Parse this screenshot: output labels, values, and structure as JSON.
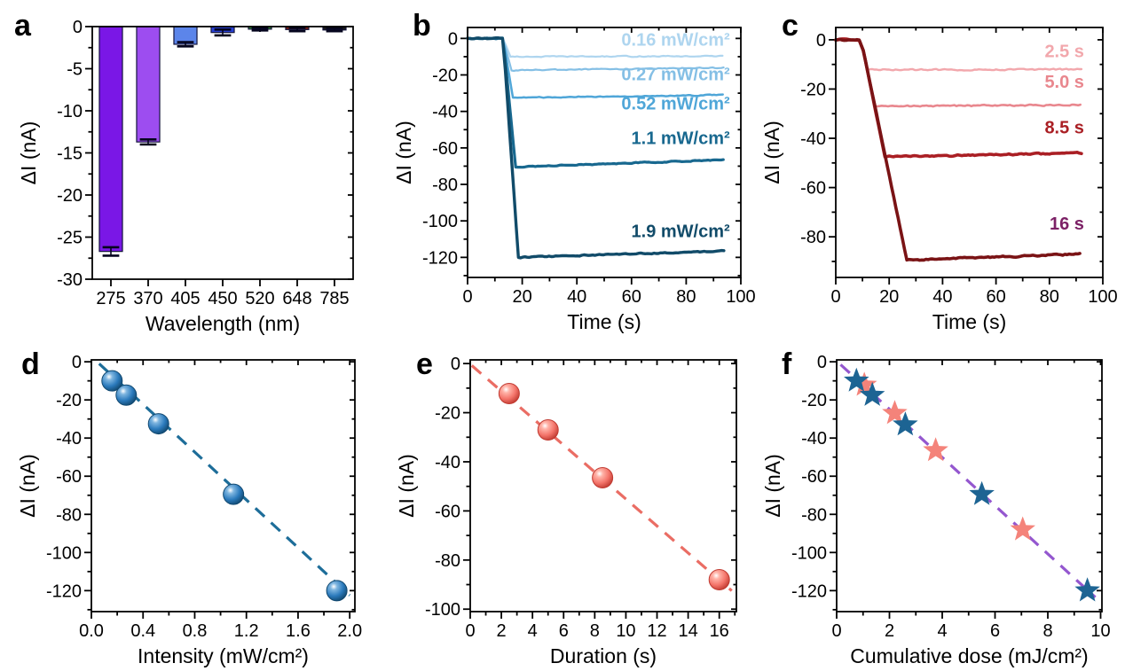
{
  "panels": [
    {
      "label": "a",
      "type": "bar",
      "xlabel": "Wavelength (nm)",
      "ylabel": "ΔI (nA)",
      "categories": [
        "275",
        "370",
        "405",
        "450",
        "520",
        "648",
        "785"
      ],
      "values": [
        -26.7,
        -13.7,
        -2.1,
        -0.7,
        -0.3,
        -0.35,
        -0.4
      ],
      "errors": [
        0.5,
        0.3,
        0.25,
        0.35,
        0.15,
        0.2,
        0.15
      ],
      "bar_colors": [
        "#7a17e6",
        "#9d4df0",
        "#5c85ea",
        "#2840d4",
        "#2f8b2f",
        "#7a1d10",
        "#1a1a1a"
      ],
      "bar_edge": "#14143c",
      "error_color": "#05051e",
      "ylim": [
        -30,
        0.001
      ],
      "ytick_values": [
        0,
        -5,
        -10,
        -15,
        -20,
        -25,
        -30
      ],
      "ytick_labels": [
        "0",
        "-5",
        "-10",
        "-15",
        "-20",
        "-25",
        "-30"
      ],
      "y_minor_step": 2.5
    },
    {
      "label": "b",
      "type": "kinetic",
      "xlabel": "Time (s)",
      "ylabel": "ΔI (nA)",
      "xlim": [
        0,
        100
      ],
      "ylim": [
        -131,
        6
      ],
      "xtick_values": [
        0,
        20,
        40,
        60,
        80,
        100
      ],
      "xtick_labels": [
        "0",
        "20",
        "40",
        "60",
        "80",
        "100"
      ],
      "ytick_values": [
        0,
        -20,
        -40,
        -60,
        -80,
        -100,
        -120
      ],
      "ytick_labels": [
        "0",
        "-20",
        "-40",
        "-60",
        "-80",
        "-100",
        "-120"
      ],
      "x_minor_step": 10,
      "y_minor_step": 10,
      "t_on": 13,
      "t_end": 94,
      "series": [
        {
          "label": "0.16 mW/cm²",
          "color": "#aed5ef",
          "plateau": -10,
          "t_flat": 15.7,
          "end_value": -9.7,
          "width": 2.2,
          "label_x": 96,
          "label_y": -4
        },
        {
          "label": "0.27 mW/cm²",
          "color": "#84bfe5",
          "plateau": -17.5,
          "t_flat": 16.1,
          "end_value": -16,
          "width": 2.2,
          "label_x": 96,
          "label_y": -23
        },
        {
          "label": "0.52 mW/cm²",
          "color": "#4fa6d8",
          "plateau": -32.5,
          "t_flat": 16.6,
          "end_value": -31,
          "width": 2.5,
          "label_x": 96,
          "label_y": -39
        },
        {
          "label": "1.1 mW/cm²",
          "color": "#18688f",
          "plateau": -70.5,
          "t_flat": 17.6,
          "end_value": -66.5,
          "width": 3.2,
          "label_x": 96,
          "label_y": -58
        },
        {
          "label": "1.9 mW/cm²",
          "color": "#114b69",
          "plateau": -120,
          "t_flat": 18.6,
          "end_value": -116.5,
          "width": 3.4,
          "label_x": 96,
          "label_y": -109
        }
      ]
    },
    {
      "label": "c",
      "type": "kinetic",
      "xlabel": "Time (s)",
      "ylabel": "ΔI (nA)",
      "xlim": [
        0,
        100
      ],
      "ylim": [
        -96.5,
        5
      ],
      "xtick_values": [
        0,
        20,
        40,
        60,
        80,
        100
      ],
      "xtick_labels": [
        "0",
        "20",
        "40",
        "60",
        "80",
        "100"
      ],
      "ytick_values": [
        0,
        -20,
        -40,
        -60,
        -80
      ],
      "ytick_labels": [
        "0",
        "-20",
        "-40",
        "-60",
        "-80"
      ],
      "x_minor_step": 10,
      "y_minor_step": 10,
      "t_on": 9.5,
      "t_end": 92,
      "series": [
        {
          "label": "2.5 s",
          "color": "#f2a7ac",
          "plateau": -12.2,
          "t_flat": 12,
          "end_value": -12,
          "width": 2.4,
          "label_x": 93,
          "label_y": -7
        },
        {
          "label": "5.0 s",
          "color": "#e9878e",
          "plateau": -27,
          "t_flat": 14.8,
          "end_value": -26.5,
          "width": 2.6,
          "label_x": 93,
          "label_y": -19.5
        },
        {
          "label": "8.5 s",
          "color": "#aa1f24",
          "plateau": -47.5,
          "t_flat": 18.4,
          "end_value": -46,
          "width": 3.6,
          "label_x": 93,
          "label_y": -38
        },
        {
          "label": "16 s",
          "color": "#7a1315",
          "label_color": "#7c2166",
          "plateau": -89.5,
          "t_flat": 26.6,
          "end_value": -87,
          "width": 3.6,
          "label_x": 93,
          "label_y": -77
        }
      ]
    },
    {
      "label": "d",
      "type": "scatter",
      "marker": "sphere",
      "xlabel": "Intensity (mW/cm²)",
      "ylabel": "ΔI (nA)",
      "xlim": [
        0,
        2.04
      ],
      "ylim": [
        -131,
        1
      ],
      "xtick_values": [
        0.0,
        0.4,
        0.8,
        1.2,
        1.6,
        2.0
      ],
      "xtick_labels": [
        "0.0",
        "0.4",
        "0.8",
        "1.2",
        "1.6",
        "2.0"
      ],
      "ytick_values": [
        0,
        -20,
        -40,
        -60,
        -80,
        -100,
        -120
      ],
      "ytick_labels": [
        "0",
        "-20",
        "-40",
        "-60",
        "-80",
        "-100",
        "-120"
      ],
      "x_minor_step": 0.2,
      "y_minor_step": 10,
      "trend_line": {
        "color": "#1d6d99",
        "x0": 0.06,
        "y0": -1,
        "x1": 2.0,
        "y1": -122.5
      },
      "marker_light": "#7fb6e0",
      "marker_color": "#2b7abc",
      "marker_dark": "#11486f",
      "points": [
        [
          0.16,
          -10
        ],
        [
          0.27,
          -17.5
        ],
        [
          0.52,
          -32.5
        ],
        [
          1.1,
          -69.5
        ],
        [
          1.9,
          -120
        ]
      ]
    },
    {
      "label": "e",
      "type": "scatter",
      "marker": "sphere",
      "xlabel": "Duration (s)",
      "ylabel": "ΔI (nA)",
      "xlim": [
        0,
        17.1
      ],
      "ylim": [
        -101,
        1.5
      ],
      "xtick_values": [
        0,
        2,
        4,
        6,
        8,
        10,
        12,
        14,
        16
      ],
      "xtick_labels": [
        "0",
        "2",
        "4",
        "6",
        "8",
        "10",
        "12",
        "14",
        "16"
      ],
      "ytick_values": [
        0,
        -20,
        -40,
        -60,
        -80,
        -100
      ],
      "ytick_labels": [
        "0",
        "-20",
        "-40",
        "-60",
        "-80",
        "-100"
      ],
      "x_minor_step": 1,
      "y_minor_step": 10,
      "trend_line": {
        "color": "#ea6d64",
        "x0": 0.1,
        "y0": -0.8,
        "x1": 16.8,
        "y1": -92.5
      },
      "marker_light": "#ffb3a8",
      "marker_color": "#f4756b",
      "marker_dark": "#c03a31",
      "points": [
        [
          2.5,
          -12.2
        ],
        [
          5.0,
          -27
        ],
        [
          8.5,
          -46.5
        ],
        [
          16,
          -88
        ]
      ]
    },
    {
      "label": "f",
      "type": "scatter",
      "marker": "star",
      "xlabel": "Cumulative dose (mJ/cm²)",
      "ylabel": "ΔI (nA)",
      "xlim": [
        0,
        10.05
      ],
      "ylim": [
        -131,
        1
      ],
      "xtick_values": [
        0,
        2,
        4,
        6,
        8,
        10
      ],
      "xtick_labels": [
        "0",
        "2",
        "4",
        "6",
        "8",
        "10"
      ],
      "ytick_values": [
        0,
        -20,
        -40,
        -60,
        -80,
        -100,
        -120
      ],
      "ytick_labels": [
        "0",
        "-20",
        "-40",
        "-60",
        "-80",
        "-100",
        "-120"
      ],
      "x_minor_step": 1,
      "y_minor_step": 10,
      "trend_line": {
        "color": "#9457cf",
        "x0": 0.15,
        "y0": -1.5,
        "x1": 9.8,
        "y1": -123.5
      },
      "star_series": [
        {
          "name": "salmon-stars",
          "color": "#f4837a",
          "points": [
            [
              1.05,
              -12.2
            ],
            [
              2.2,
              -27
            ],
            [
              3.75,
              -46.5
            ],
            [
              7.05,
              -88
            ]
          ]
        },
        {
          "name": "blue-stars",
          "color": "#1d6493",
          "points": [
            [
              0.75,
              -10
            ],
            [
              1.35,
              -17.5
            ],
            [
              2.6,
              -33
            ],
            [
              5.5,
              -69.5
            ],
            [
              9.5,
              -120
            ]
          ]
        }
      ]
    }
  ]
}
